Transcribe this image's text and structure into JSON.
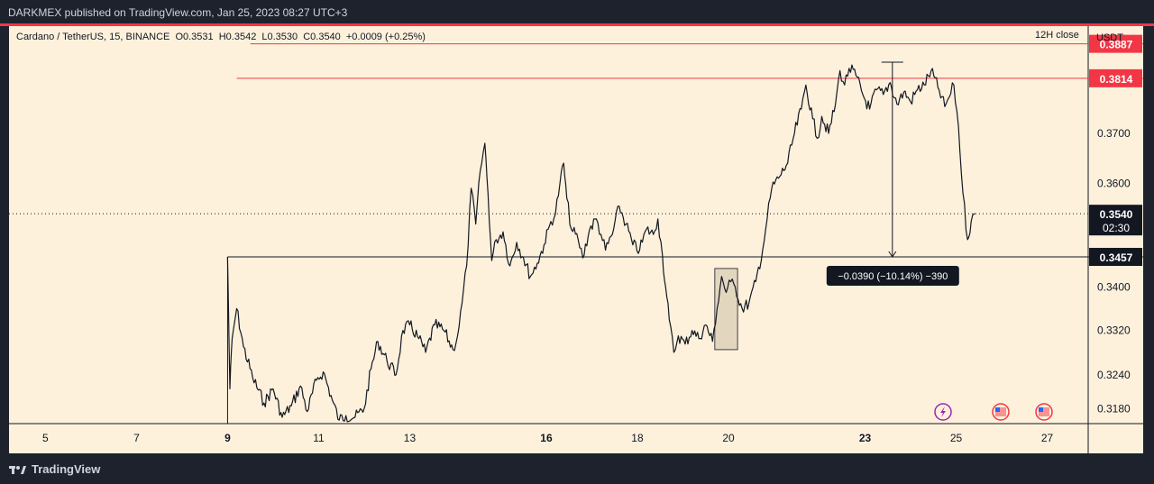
{
  "header": {
    "published_text": "DARKMEX published on TradingView.com, Jan 25, 2023 08:27 UTC+3"
  },
  "legend": {
    "symbol": "Cardano / TetherUS, 15, BINANCE",
    "open": "O0.3531",
    "high": "H0.3542",
    "low": "L0.3530",
    "close": "C0.3540",
    "change": "+0.0009 (+0.25%)"
  },
  "timeframe_close": "12H close",
  "currency": "USDT",
  "footer": {
    "brand": "TradingView"
  },
  "colors": {
    "background": "#fdf1dc",
    "frame": "#1e222d",
    "accent_red": "#f23645",
    "candles": "#131722"
  },
  "chart_data": {
    "type": "line",
    "symbol": "ADA/USDT",
    "interval": "15",
    "x_tick_labels": [
      "5",
      "7",
      "9",
      "11",
      "13",
      "16",
      "18",
      "20",
      "23",
      "25",
      "27"
    ],
    "x_tick_days": [
      5,
      7,
      9,
      11,
      13,
      16,
      18,
      20,
      23,
      25,
      27
    ],
    "bold_ticks": [
      "9",
      "16",
      "23"
    ],
    "xlim_days": [
      4.2,
      27.9
    ],
    "y_tick_labels": [
      "0.3180",
      "0.3240",
      "0.3320",
      "0.3400",
      "0.3600",
      "0.3700"
    ],
    "y_ticks": [
      0.318,
      0.324,
      0.332,
      0.34,
      0.36,
      0.37
    ],
    "ylim": [
      0.3154,
      0.3925
    ],
    "y_scale": "log",
    "current_price": {
      "label": "0.3540",
      "value": 0.354,
      "countdown": "02:30"
    },
    "horizontal_levels": [
      {
        "value": 0.3887,
        "label": "0.3887",
        "color": "#f23645",
        "from_day": 9.5
      },
      {
        "value": 0.3814,
        "label": "0.3814",
        "color": "#f23645",
        "from_day": 9.2
      },
      {
        "value": 0.3457,
        "label": "0.3457",
        "color": "#131722",
        "from_day": 9.0
      }
    ],
    "measure": {
      "day": 23.6,
      "from": 0.3848,
      "to": 0.3457,
      "label": "−0.0390 (−10.14%) −390"
    },
    "highlight_box": {
      "x0": 19.7,
      "x1": 20.2,
      "y0": 0.3285,
      "y1": 0.3435
    },
    "price_path": [
      [
        9.0,
        0.3457
      ],
      [
        9.05,
        0.3215
      ],
      [
        9.1,
        0.3305
      ],
      [
        9.2,
        0.336
      ],
      [
        9.35,
        0.329
      ],
      [
        9.55,
        0.3235
      ],
      [
        9.8,
        0.319
      ],
      [
        10.0,
        0.3215
      ],
      [
        10.2,
        0.3165
      ],
      [
        10.4,
        0.3185
      ],
      [
        10.6,
        0.322
      ],
      [
        10.75,
        0.3175
      ],
      [
        10.95,
        0.323
      ],
      [
        11.1,
        0.3245
      ],
      [
        11.3,
        0.3195
      ],
      [
        11.45,
        0.316
      ],
      [
        11.6,
        0.3168
      ],
      [
        11.8,
        0.3165
      ],
      [
        12.0,
        0.318
      ],
      [
        12.15,
        0.325
      ],
      [
        12.3,
        0.33
      ],
      [
        12.5,
        0.3265
      ],
      [
        12.7,
        0.324
      ],
      [
        12.85,
        0.332
      ],
      [
        13.0,
        0.333
      ],
      [
        13.2,
        0.3305
      ],
      [
        13.35,
        0.328
      ],
      [
        13.55,
        0.333
      ],
      [
        13.75,
        0.332
      ],
      [
        13.95,
        0.3285
      ],
      [
        14.05,
        0.331
      ],
      [
        14.15,
        0.337
      ],
      [
        14.25,
        0.344
      ],
      [
        14.35,
        0.359
      ],
      [
        14.45,
        0.352
      ],
      [
        14.55,
        0.3625
      ],
      [
        14.65,
        0.368
      ],
      [
        14.72,
        0.358
      ],
      [
        14.8,
        0.345
      ],
      [
        14.9,
        0.349
      ],
      [
        15.05,
        0.3505
      ],
      [
        15.2,
        0.344
      ],
      [
        15.35,
        0.3485
      ],
      [
        15.5,
        0.3455
      ],
      [
        15.65,
        0.342
      ],
      [
        15.8,
        0.3445
      ],
      [
        15.95,
        0.348
      ],
      [
        16.1,
        0.3525
      ],
      [
        16.2,
        0.354
      ],
      [
        16.3,
        0.36
      ],
      [
        16.38,
        0.364
      ],
      [
        16.45,
        0.357
      ],
      [
        16.55,
        0.351
      ],
      [
        16.7,
        0.349
      ],
      [
        16.8,
        0.3455
      ],
      [
        16.95,
        0.351
      ],
      [
        17.1,
        0.353
      ],
      [
        17.2,
        0.35
      ],
      [
        17.3,
        0.347
      ],
      [
        17.45,
        0.35
      ],
      [
        17.6,
        0.3555
      ],
      [
        17.75,
        0.352
      ],
      [
        17.9,
        0.348
      ],
      [
        18.05,
        0.347
      ],
      [
        18.2,
        0.351
      ],
      [
        18.35,
        0.35
      ],
      [
        18.45,
        0.353
      ],
      [
        18.55,
        0.346
      ],
      [
        18.62,
        0.34
      ],
      [
        18.7,
        0.334
      ],
      [
        18.8,
        0.328
      ],
      [
        18.9,
        0.331
      ],
      [
        19.05,
        0.3295
      ],
      [
        19.2,
        0.332
      ],
      [
        19.35,
        0.3305
      ],
      [
        19.5,
        0.333
      ],
      [
        19.65,
        0.33
      ],
      [
        19.75,
        0.336
      ],
      [
        19.85,
        0.342
      ],
      [
        19.95,
        0.339
      ],
      [
        20.05,
        0.341
      ],
      [
        20.15,
        0.34
      ],
      [
        20.3,
        0.336
      ],
      [
        20.45,
        0.337
      ],
      [
        20.6,
        0.341
      ],
      [
        20.75,
        0.347
      ],
      [
        20.85,
        0.353
      ],
      [
        20.95,
        0.359
      ],
      [
        21.1,
        0.361
      ],
      [
        21.3,
        0.364
      ],
      [
        21.45,
        0.37
      ],
      [
        21.6,
        0.375
      ],
      [
        21.7,
        0.38
      ],
      [
        21.85,
        0.373
      ],
      [
        21.95,
        0.369
      ],
      [
        22.05,
        0.3735
      ],
      [
        22.2,
        0.37
      ],
      [
        22.35,
        0.376
      ],
      [
        22.45,
        0.383
      ],
      [
        22.55,
        0.38
      ],
      [
        22.65,
        0.3835
      ],
      [
        22.8,
        0.382
      ],
      [
        22.95,
        0.378
      ],
      [
        23.1,
        0.375
      ],
      [
        23.25,
        0.379
      ],
      [
        23.4,
        0.378
      ],
      [
        23.55,
        0.3805
      ],
      [
        23.7,
        0.376
      ],
      [
        23.85,
        0.3785
      ],
      [
        24.0,
        0.3765
      ],
      [
        24.15,
        0.379
      ],
      [
        24.3,
        0.38
      ],
      [
        24.45,
        0.383
      ],
      [
        24.6,
        0.3795
      ],
      [
        24.75,
        0.3755
      ],
      [
        24.85,
        0.3775
      ],
      [
        24.95,
        0.38
      ],
      [
        25.05,
        0.3715
      ],
      [
        25.15,
        0.358
      ],
      [
        25.25,
        0.349
      ],
      [
        25.33,
        0.3525
      ],
      [
        25.42,
        0.354
      ]
    ]
  }
}
